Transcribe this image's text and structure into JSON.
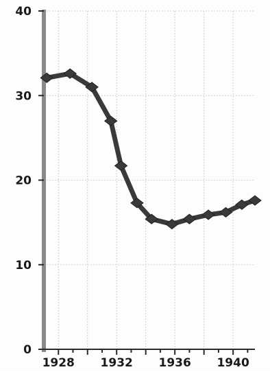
{
  "chart_data": {
    "type": "line",
    "title": "",
    "xlabel": "",
    "ylabel": "",
    "xlim": [
      1927,
      1941.5
    ],
    "ylim": [
      0,
      40
    ],
    "x_ticks": [
      1928,
      1932,
      1936,
      1940
    ],
    "y_ticks": [
      0,
      10,
      20,
      30,
      40
    ],
    "grid": true,
    "legend": "none",
    "series": [
      {
        "x": [
          1927.2,
          1928.8,
          1930.3,
          1931.6,
          1932.3,
          1933.4,
          1934.4,
          1935.8,
          1937.0,
          1938.3,
          1939.5,
          1940.6,
          1941.5
        ],
        "y": [
          32.1,
          32.6,
          31.0,
          27.0,
          21.7,
          17.3,
          15.4,
          14.8,
          15.4,
          15.9,
          16.2,
          17.1,
          17.6
        ],
        "color": "#3a3a3a",
        "marker": "diamond"
      }
    ]
  }
}
